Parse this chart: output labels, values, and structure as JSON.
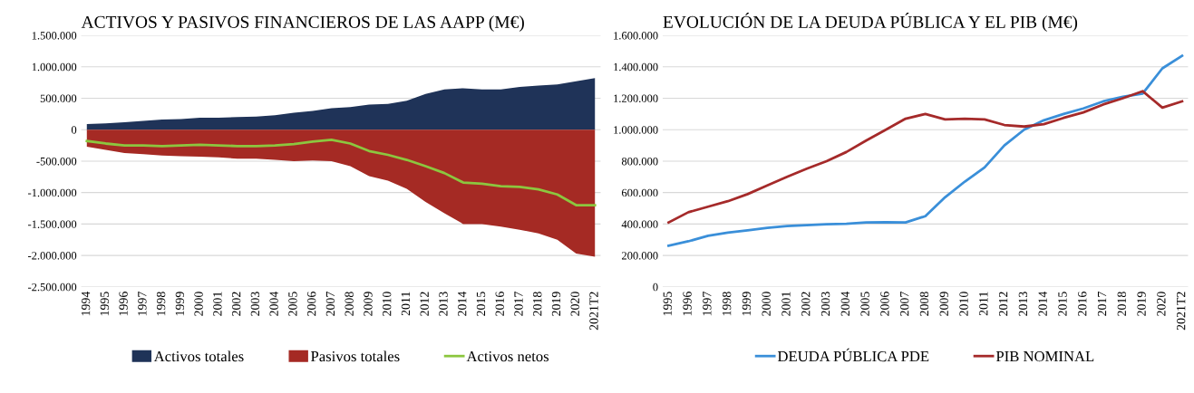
{
  "chart_data": [
    {
      "type": "area",
      "title": "ACTIVOS Y PASIVOS FINANCIEROS DE LAS AAPP (M€)",
      "categories": [
        "1994",
        "1995",
        "1996",
        "1997",
        "1998",
        "1999",
        "2000",
        "2001",
        "2002",
        "2003",
        "2004",
        "2005",
        "2006",
        "2007",
        "2008",
        "2009",
        "2010",
        "2011",
        "2012",
        "2013",
        "2014",
        "2015",
        "2016",
        "2017",
        "2018",
        "2019",
        "2020",
        "2021T2"
      ],
      "series": [
        {
          "name": "Activos totales",
          "type": "area",
          "color": "#1f3358",
          "values": [
            90000,
            100000,
            120000,
            140000,
            160000,
            170000,
            190000,
            190000,
            200000,
            210000,
            230000,
            270000,
            300000,
            340000,
            360000,
            400000,
            410000,
            460000,
            570000,
            640000,
            660000,
            640000,
            640000,
            680000,
            700000,
            720000,
            770000,
            820000
          ]
        },
        {
          "name": "Pasivos totales",
          "type": "area",
          "color": "#a52a24",
          "values": [
            -270000,
            -320000,
            -370000,
            -390000,
            -410000,
            -420000,
            -430000,
            -440000,
            -460000,
            -460000,
            -480000,
            -500000,
            -490000,
            -500000,
            -580000,
            -740000,
            -810000,
            -940000,
            -1150000,
            -1330000,
            -1500000,
            -1500000,
            -1540000,
            -1590000,
            -1650000,
            -1750000,
            -1970000,
            -2020000
          ]
        },
        {
          "name": "Activos netos",
          "type": "line",
          "color": "#8cc63f",
          "values": [
            -180000,
            -220000,
            -250000,
            -250000,
            -260000,
            -250000,
            -240000,
            -250000,
            -260000,
            -260000,
            -250000,
            -230000,
            -190000,
            -160000,
            -220000,
            -340000,
            -400000,
            -480000,
            -580000,
            -690000,
            -840000,
            -860000,
            -900000,
            -910000,
            -950000,
            -1030000,
            -1200000,
            -1200000
          ]
        }
      ],
      "ylim": [
        -2500000,
        1500000
      ],
      "yticks": [
        {
          "value": -2500000,
          "label": "-2.500.000"
        },
        {
          "value": -2000000,
          "label": "-2.000.000"
        },
        {
          "value": -1500000,
          "label": "-1.500.000"
        },
        {
          "value": -1000000,
          "label": "-1.000.000"
        },
        {
          "value": -500000,
          "label": "-500.000"
        },
        {
          "value": 0,
          "label": "0"
        },
        {
          "value": 500000,
          "label": "500.000"
        },
        {
          "value": 1000000,
          "label": "1.000.000"
        },
        {
          "value": 1500000,
          "label": "1.500.000"
        }
      ],
      "grid": "y",
      "legend": "bottom"
    },
    {
      "type": "line",
      "title": "EVOLUCIÓN DE LA DEUDA PÚBLICA Y EL PIB (M€)",
      "categories": [
        "1995",
        "1996",
        "1997",
        "1998",
        "1999",
        "2000",
        "2001",
        "2002",
        "2003",
        "2004",
        "2005",
        "2006",
        "2007",
        "2008",
        "2009",
        "2010",
        "2011",
        "2012",
        "2013",
        "2014",
        "2015",
        "2016",
        "2017",
        "2018",
        "2019",
        "2020",
        "2021T2"
      ],
      "series": [
        {
          "name": "DEUDA PÚBLICA PDE",
          "color": "#3a8fd9",
          "values": [
            262000,
            290000,
            325000,
            345000,
            360000,
            375000,
            387000,
            393000,
            398000,
            402000,
            410000,
            412000,
            410000,
            450000,
            570000,
            670000,
            760000,
            900000,
            1000000,
            1060000,
            1100000,
            1135000,
            1180000,
            1210000,
            1230000,
            1390000,
            1470000
          ]
        },
        {
          "name": "PIB NOMINAL",
          "color": "#a52a2a",
          "values": [
            410000,
            475000,
            510000,
            545000,
            590000,
            645000,
            700000,
            752000,
            800000,
            858000,
            931000,
            1000000,
            1070000,
            1100000,
            1065000,
            1070000,
            1065000,
            1030000,
            1020000,
            1035000,
            1075000,
            1110000,
            1160000,
            1200000,
            1245000,
            1140000,
            1180000
          ]
        }
      ],
      "ylim": [
        0,
        1600000
      ],
      "yticks": [
        {
          "value": 0,
          "label": "0"
        },
        {
          "value": 200000,
          "label": "200.000"
        },
        {
          "value": 400000,
          "label": "400.000"
        },
        {
          "value": 600000,
          "label": "600.000"
        },
        {
          "value": 800000,
          "label": "800.000"
        },
        {
          "value": 1000000,
          "label": "1.000.000"
        },
        {
          "value": 1200000,
          "label": "1.200.000"
        },
        {
          "value": 1400000,
          "label": "1.400.000"
        },
        {
          "value": 1600000,
          "label": "1.600.000"
        }
      ],
      "grid": "y",
      "legend": "bottom"
    }
  ]
}
